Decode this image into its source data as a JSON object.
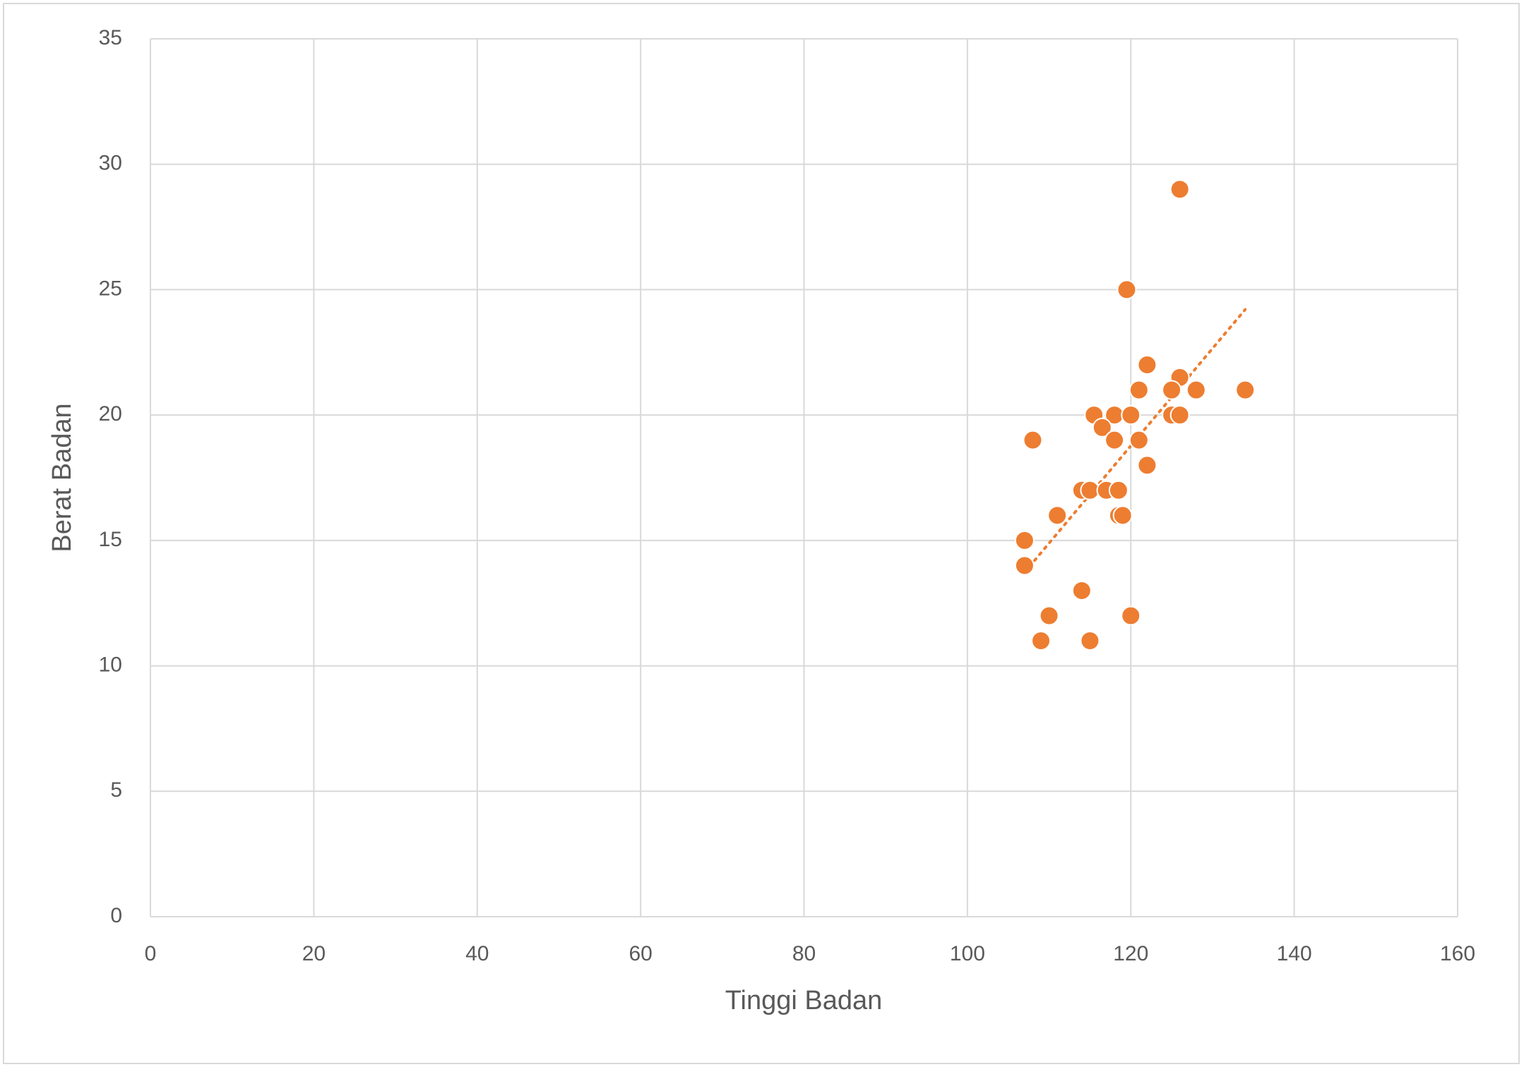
{
  "chart_data": {
    "type": "scatter",
    "x_label": "Tinggi Badan",
    "y_label": "Berat Badan",
    "x": [
      126,
      119.5,
      122,
      126,
      121,
      125,
      128,
      134,
      115.5,
      118,
      120,
      125,
      126,
      116.5,
      108,
      118,
      121,
      122,
      114,
      115,
      117,
      118.5,
      111,
      118.5,
      119,
      107,
      107,
      114,
      110,
      120,
      109,
      115
    ],
    "values": [
      29,
      25,
      22,
      21.5,
      21,
      21,
      21,
      21,
      20,
      20,
      20,
      20,
      20,
      19.5,
      19,
      19,
      19,
      18,
      17,
      17,
      17,
      17,
      16,
      16,
      16,
      15,
      14,
      13,
      12,
      12,
      11,
      11
    ],
    "color": "#ed7d31",
    "trendline": "linear",
    "xlim": [
      0,
      160
    ],
    "xticks": [
      0,
      20,
      40,
      60,
      80,
      100,
      120,
      140,
      160
    ],
    "ylim": [
      0,
      35
    ],
    "yticks": [
      0,
      5,
      10,
      15,
      20,
      25,
      30,
      35
    ],
    "grid": true
  }
}
